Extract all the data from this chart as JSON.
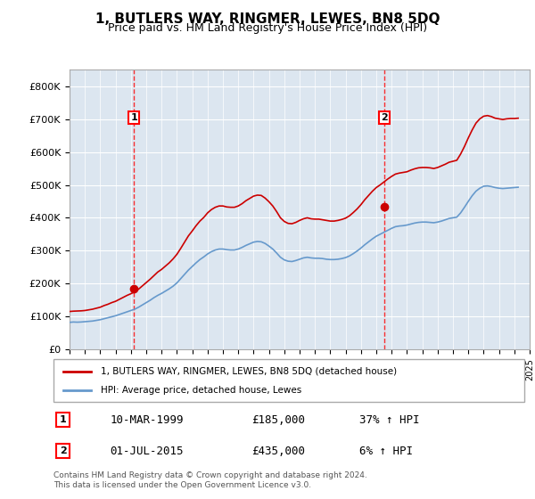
{
  "title": "1, BUTLERS WAY, RINGMER, LEWES, BN8 5DQ",
  "subtitle": "Price paid vs. HM Land Registry's House Price Index (HPI)",
  "background_color": "#dce6f0",
  "plot_bg_color": "#dce6f0",
  "ylim": [
    0,
    850000
  ],
  "yticks": [
    0,
    100000,
    200000,
    300000,
    400000,
    500000,
    600000,
    700000,
    800000
  ],
  "ylabel_format": "£{0}K",
  "sale1_date": 1999.19,
  "sale1_price": 185000,
  "sale1_label": "1",
  "sale2_date": 2015.5,
  "sale2_price": 435000,
  "sale2_label": "2",
  "legend_entries": [
    "1, BUTLERS WAY, RINGMER, LEWES, BN8 5DQ (detached house)",
    "HPI: Average price, detached house, Lewes"
  ],
  "legend_colors": [
    "#cc0000",
    "#6699cc"
  ],
  "table_rows": [
    {
      "num": "1",
      "date": "10-MAR-1999",
      "price": "£185,000",
      "hpi": "37% ↑ HPI"
    },
    {
      "num": "2",
      "date": "01-JUL-2015",
      "price": "£435,000",
      "hpi": "6% ↑ HPI"
    }
  ],
  "footer": "Contains HM Land Registry data © Crown copyright and database right 2024.\nThis data is licensed under the Open Government Licence v3.0.",
  "hpi_line_color": "#6699cc",
  "price_line_color": "#cc0000",
  "hpi_data": {
    "years": [
      1995.0,
      1995.25,
      1995.5,
      1995.75,
      1996.0,
      1996.25,
      1996.5,
      1996.75,
      1997.0,
      1997.25,
      1997.5,
      1997.75,
      1998.0,
      1998.25,
      1998.5,
      1998.75,
      1999.0,
      1999.25,
      1999.5,
      1999.75,
      2000.0,
      2000.25,
      2000.5,
      2000.75,
      2001.0,
      2001.25,
      2001.5,
      2001.75,
      2002.0,
      2002.25,
      2002.5,
      2002.75,
      2003.0,
      2003.25,
      2003.5,
      2003.75,
      2004.0,
      2004.25,
      2004.5,
      2004.75,
      2005.0,
      2005.25,
      2005.5,
      2005.75,
      2006.0,
      2006.25,
      2006.5,
      2006.75,
      2007.0,
      2007.25,
      2007.5,
      2007.75,
      2008.0,
      2008.25,
      2008.5,
      2008.75,
      2009.0,
      2009.25,
      2009.5,
      2009.75,
      2010.0,
      2010.25,
      2010.5,
      2010.75,
      2011.0,
      2011.25,
      2011.5,
      2011.75,
      2012.0,
      2012.25,
      2012.5,
      2012.75,
      2013.0,
      2013.25,
      2013.5,
      2013.75,
      2014.0,
      2014.25,
      2014.5,
      2014.75,
      2015.0,
      2015.25,
      2015.5,
      2015.75,
      2016.0,
      2016.25,
      2016.5,
      2016.75,
      2017.0,
      2017.25,
      2017.5,
      2017.75,
      2018.0,
      2018.25,
      2018.5,
      2018.75,
      2019.0,
      2019.25,
      2019.5,
      2019.75,
      2020.0,
      2020.25,
      2020.5,
      2020.75,
      2021.0,
      2021.25,
      2021.5,
      2021.75,
      2022.0,
      2022.25,
      2022.5,
      2022.75,
      2023.0,
      2023.25,
      2023.5,
      2023.75,
      2024.0,
      2024.25
    ],
    "values": [
      82000,
      83000,
      82500,
      83000,
      84000,
      85000,
      86000,
      88000,
      90000,
      93000,
      96000,
      99000,
      102000,
      106000,
      110000,
      114000,
      118000,
      122000,
      128000,
      135000,
      142000,
      149000,
      157000,
      164000,
      170000,
      177000,
      184000,
      192000,
      202000,
      215000,
      228000,
      241000,
      252000,
      263000,
      273000,
      281000,
      290000,
      297000,
      302000,
      305000,
      305000,
      303000,
      302000,
      302000,
      305000,
      310000,
      316000,
      321000,
      326000,
      328000,
      327000,
      322000,
      314000,
      305000,
      293000,
      280000,
      272000,
      268000,
      267000,
      270000,
      274000,
      278000,
      280000,
      278000,
      277000,
      277000,
      276000,
      274000,
      273000,
      273000,
      274000,
      276000,
      279000,
      284000,
      291000,
      299000,
      308000,
      318000,
      327000,
      336000,
      344000,
      350000,
      356000,
      362000,
      368000,
      373000,
      375000,
      376000,
      378000,
      381000,
      384000,
      386000,
      387000,
      387000,
      386000,
      385000,
      387000,
      390000,
      394000,
      398000,
      400000,
      402000,
      415000,
      432000,
      450000,
      467000,
      481000,
      490000,
      496000,
      497000,
      495000,
      492000,
      490000,
      489000,
      490000,
      491000,
      492000,
      493000
    ]
  },
  "price_data": {
    "years": [
      1995.0,
      1995.25,
      1995.5,
      1995.75,
      1996.0,
      1996.25,
      1996.5,
      1996.75,
      1997.0,
      1997.25,
      1997.5,
      1997.75,
      1998.0,
      1998.25,
      1998.5,
      1998.75,
      1999.0,
      1999.25,
      1999.5,
      1999.75,
      2000.0,
      2000.25,
      2000.5,
      2000.75,
      2001.0,
      2001.25,
      2001.5,
      2001.75,
      2002.0,
      2002.25,
      2002.5,
      2002.75,
      2003.0,
      2003.25,
      2003.5,
      2003.75,
      2004.0,
      2004.25,
      2004.5,
      2004.75,
      2005.0,
      2005.25,
      2005.5,
      2005.75,
      2006.0,
      2006.25,
      2006.5,
      2006.75,
      2007.0,
      2007.25,
      2007.5,
      2007.75,
      2008.0,
      2008.25,
      2008.5,
      2008.75,
      2009.0,
      2009.25,
      2009.5,
      2009.75,
      2010.0,
      2010.25,
      2010.5,
      2010.75,
      2011.0,
      2011.25,
      2011.5,
      2011.75,
      2012.0,
      2012.25,
      2012.5,
      2012.75,
      2013.0,
      2013.25,
      2013.5,
      2013.75,
      2014.0,
      2014.25,
      2014.5,
      2014.75,
      2015.0,
      2015.25,
      2015.5,
      2015.75,
      2016.0,
      2016.25,
      2016.5,
      2016.75,
      2017.0,
      2017.25,
      2017.5,
      2017.75,
      2018.0,
      2018.25,
      2018.5,
      2018.75,
      2019.0,
      2019.25,
      2019.5,
      2019.75,
      2020.0,
      2020.25,
      2020.5,
      2020.75,
      2021.0,
      2021.25,
      2021.5,
      2021.75,
      2022.0,
      2022.25,
      2022.5,
      2022.75,
      2023.0,
      2023.25,
      2023.5,
      2023.75,
      2024.0,
      2024.25
    ],
    "values": [
      115000,
      116000,
      116500,
      117000,
      118000,
      120000,
      122000,
      125000,
      128000,
      133000,
      137000,
      142000,
      146000,
      152000,
      158000,
      164000,
      169000,
      175000,
      183000,
      193000,
      203000,
      213000,
      224000,
      235000,
      243000,
      253000,
      263000,
      275000,
      289000,
      307000,
      326000,
      345000,
      360000,
      376000,
      390000,
      401000,
      415000,
      425000,
      432000,
      436000,
      436000,
      433000,
      432000,
      432000,
      436000,
      443000,
      452000,
      459000,
      466000,
      469000,
      468000,
      460000,
      449000,
      436000,
      419000,
      400000,
      389000,
      383000,
      382000,
      386000,
      392000,
      397000,
      400000,
      397000,
      396000,
      396000,
      394000,
      392000,
      390000,
      390000,
      392000,
      395000,
      399000,
      406000,
      416000,
      427000,
      440000,
      455000,
      468000,
      481000,
      492000,
      500000,
      509000,
      518000,
      526000,
      533000,
      536000,
      538000,
      540000,
      545000,
      549000,
      552000,
      553000,
      553000,
      552000,
      550000,
      553000,
      558000,
      563000,
      569000,
      572000,
      575000,
      594000,
      617000,
      643000,
      667000,
      688000,
      701000,
      709000,
      711000,
      708000,
      703000,
      701000,
      699000,
      701000,
      702000,
      702000,
      703000
    ]
  }
}
